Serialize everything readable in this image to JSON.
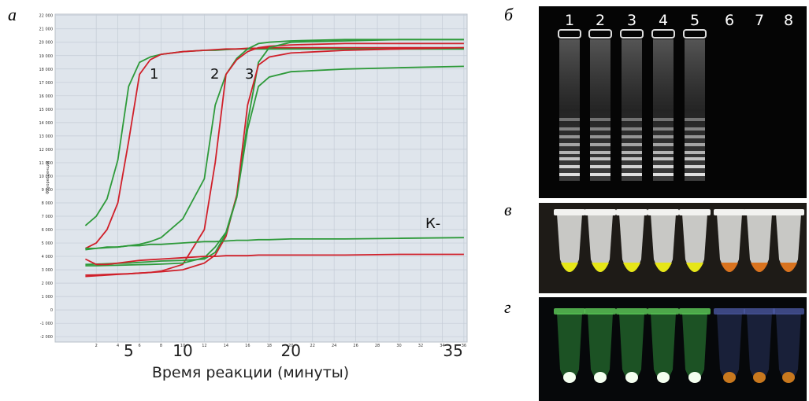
{
  "panel_labels": [
    "а",
    "б",
    "в",
    "г"
  ],
  "gel_lanes": [
    "1",
    "2",
    "3",
    "4",
    "5",
    "6",
    "7",
    "8"
  ],
  "chart_data": {
    "type": "line",
    "xlabel": "Время реакции (минуты)",
    "ylabel": "Флуоресценция",
    "x": [
      1,
      2,
      3,
      4,
      5,
      6,
      7,
      8,
      10,
      12,
      13,
      14,
      15,
      16,
      17,
      18,
      20,
      25,
      30,
      36
    ],
    "series": [
      {
        "color": "#2e9a3a",
        "values": [
          6300,
          7000,
          8300,
          11200,
          16700,
          18500,
          18900,
          19100,
          19300,
          19400,
          19400,
          19450,
          19500,
          19500,
          19500,
          19500,
          19500,
          19500,
          19500,
          19500
        ]
      },
      {
        "color": "#d0202a",
        "values": [
          4600,
          5000,
          6000,
          8000,
          12600,
          17600,
          18700,
          19100,
          19300,
          19400,
          19450,
          19500,
          19500,
          19550,
          19550,
          19600,
          19600,
          19600,
          19600,
          19600
        ]
      },
      {
        "color": "#2e9a3a",
        "values": [
          4500,
          4600,
          4650,
          4700,
          4800,
          4900,
          5100,
          5400,
          6800,
          9800,
          15300,
          17600,
          18800,
          19500,
          19900,
          20000,
          20100,
          20200,
          20200,
          20200
        ]
      },
      {
        "color": "#d0202a",
        "values": [
          2500,
          2550,
          2600,
          2650,
          2700,
          2750,
          2800,
          2900,
          3400,
          6000,
          11000,
          17600,
          18700,
          19300,
          19600,
          19700,
          19800,
          19900,
          19900,
          19900
        ]
      },
      {
        "color": "#2e9a3a",
        "values": [
          3300,
          3300,
          3320,
          3340,
          3360,
          3380,
          3400,
          3420,
          3500,
          3900,
          4700,
          5800,
          8500,
          14000,
          18500,
          19600,
          20000,
          20100,
          20200,
          20200
        ]
      },
      {
        "color": "#d0202a",
        "values": [
          2600,
          2620,
          2650,
          2680,
          2700,
          2750,
          2800,
          2850,
          3000,
          3500,
          4100,
          5500,
          8600,
          15300,
          18300,
          18900,
          19200,
          19400,
          19500,
          19600
        ]
      },
      {
        "color": "#2e9a3a",
        "values": [
          3400,
          3420,
          3450,
          3480,
          3500,
          3550,
          3600,
          3650,
          3700,
          3800,
          4300,
          5700,
          8400,
          13500,
          16700,
          17400,
          17800,
          18000,
          18100,
          18200
        ]
      },
      {
        "color": "#2e9a3a",
        "values": [
          4600,
          4600,
          4700,
          4700,
          4800,
          4800,
          4900,
          4900,
          5000,
          5100,
          5100,
          5150,
          5200,
          5200,
          5250,
          5250,
          5300,
          5300,
          5350,
          5400
        ]
      },
      {
        "color": "#d0202a",
        "values": [
          3800,
          3400,
          3400,
          3500,
          3600,
          3700,
          3750,
          3800,
          3900,
          4000,
          4000,
          4050,
          4050,
          4050,
          4100,
          4100,
          4100,
          4100,
          4150,
          4150
        ]
      }
    ],
    "annotations": [
      "1",
      "2",
      "3",
      "К-"
    ],
    "xlim": [
      -1.8,
      36.3
    ],
    "ylim": [
      -2400,
      22100
    ],
    "xticks": [
      2,
      4,
      6,
      8,
      10,
      12,
      14,
      16,
      18,
      20,
      22,
      24,
      26,
      28,
      30,
      32,
      34,
      36
    ],
    "minute_labels": [
      5,
      10,
      20,
      35
    ],
    "yticks": [
      {
        "value": -2000,
        "label": "-2 000"
      },
      {
        "value": -1000,
        "label": "-1 000"
      },
      0,
      {
        "value": 1000,
        "label": "1 000"
      },
      {
        "value": 2000,
        "label": "2 000"
      },
      {
        "value": 3000,
        "label": "3 000"
      },
      {
        "value": 4000,
        "label": "4 000"
      },
      {
        "value": 5000,
        "label": "5 000"
      },
      {
        "value": 6000,
        "label": "6 000"
      },
      {
        "value": 7000,
        "label": "7 000"
      },
      {
        "value": 8000,
        "label": "8 000"
      },
      {
        "value": 9000,
        "label": "9 000"
      },
      {
        "value": 10000,
        "label": "10 000"
      },
      {
        "value": 11000,
        "label": "11 000"
      },
      {
        "value": 12000,
        "label": "12 000"
      },
      {
        "value": 13000,
        "label": "13 000"
      },
      {
        "value": 14000,
        "label": "14 000"
      },
      {
        "value": 15000,
        "label": "15 000"
      },
      {
        "value": 16000,
        "label": "16 000"
      },
      {
        "value": 17000,
        "label": "17 000"
      },
      {
        "value": 18000,
        "label": "18 000"
      },
      {
        "value": 19000,
        "label": "19 000"
      },
      {
        "value": 20000,
        "label": "20 000"
      },
      {
        "value": 21000,
        "label": "21 000"
      },
      {
        "value": 22000,
        "label": "22 000"
      }
    ],
    "grid": true
  }
}
